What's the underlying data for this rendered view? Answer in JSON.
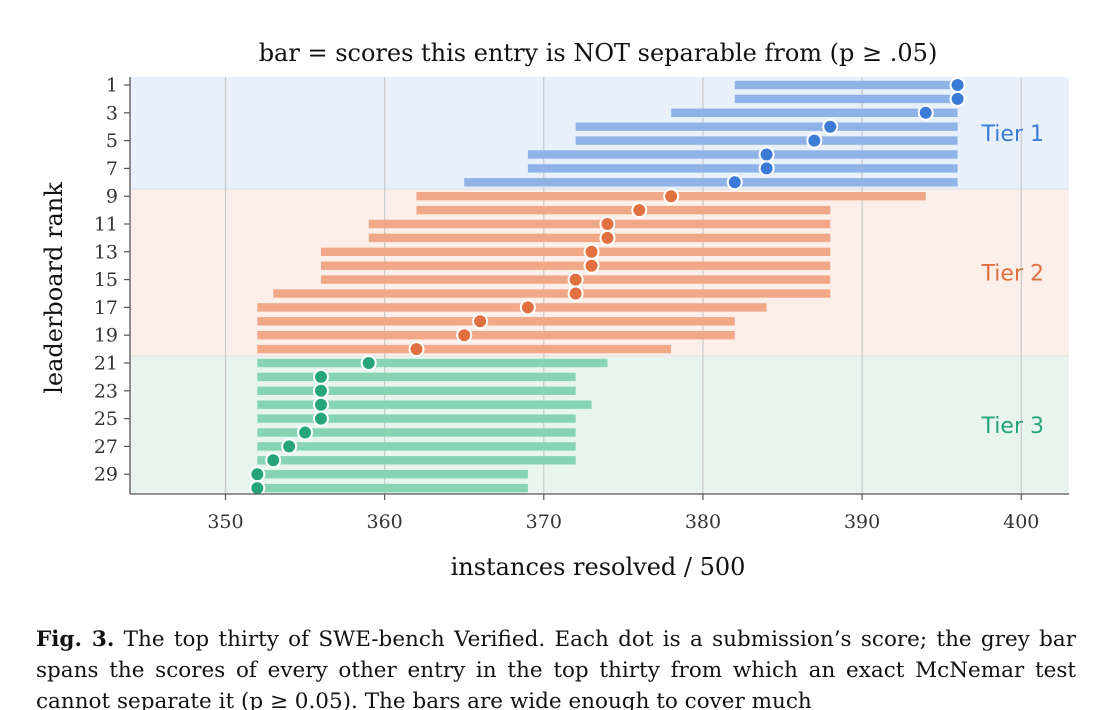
{
  "chart_data": {
    "type": "scatter",
    "title": "bar = scores this entry is NOT separable from (p ≥ .05)",
    "xlabel": "instances resolved / 500",
    "ylabel": "leaderboard rank",
    "xlim": [
      344,
      403
    ],
    "xticks": [
      350,
      360,
      370,
      380,
      390,
      400
    ],
    "yticks": [
      1,
      3,
      5,
      7,
      9,
      11,
      13,
      15,
      17,
      19,
      21,
      23,
      25,
      27,
      29
    ],
    "grid": "vertical",
    "tiers": [
      {
        "name": "Tier 1",
        "ranks": [
          1,
          8
        ],
        "color": "#3a7bd5",
        "band_color": "#e8f0fb",
        "bar_color": "#8fb3e6"
      },
      {
        "name": "Tier 2",
        "ranks": [
          9,
          20
        ],
        "color": "#e0703f",
        "band_color": "#fcefe9",
        "bar_color": "#f0a888"
      },
      {
        "name": "Tier 3",
        "ranks": [
          21,
          30
        ],
        "color": "#27a57a",
        "band_color": "#e8f5ef",
        "bar_color": "#86d4b4"
      }
    ],
    "entries": [
      {
        "rank": 1,
        "score": 396,
        "lo": 382,
        "hi": 396
      },
      {
        "rank": 2,
        "score": 396,
        "lo": 382,
        "hi": 396
      },
      {
        "rank": 3,
        "score": 394,
        "lo": 378,
        "hi": 396
      },
      {
        "rank": 4,
        "score": 388,
        "lo": 372,
        "hi": 396
      },
      {
        "rank": 5,
        "score": 387,
        "lo": 372,
        "hi": 396
      },
      {
        "rank": 6,
        "score": 384,
        "lo": 369,
        "hi": 396
      },
      {
        "rank": 7,
        "score": 384,
        "lo": 369,
        "hi": 396
      },
      {
        "rank": 8,
        "score": 382,
        "lo": 365,
        "hi": 396
      },
      {
        "rank": 9,
        "score": 378,
        "lo": 362,
        "hi": 394
      },
      {
        "rank": 10,
        "score": 376,
        "lo": 362,
        "hi": 388
      },
      {
        "rank": 11,
        "score": 374,
        "lo": 359,
        "hi": 388
      },
      {
        "rank": 12,
        "score": 374,
        "lo": 359,
        "hi": 388
      },
      {
        "rank": 13,
        "score": 373,
        "lo": 356,
        "hi": 388
      },
      {
        "rank": 14,
        "score": 373,
        "lo": 356,
        "hi": 388
      },
      {
        "rank": 15,
        "score": 372,
        "lo": 356,
        "hi": 388
      },
      {
        "rank": 16,
        "score": 372,
        "lo": 353,
        "hi": 388
      },
      {
        "rank": 17,
        "score": 369,
        "lo": 352,
        "hi": 384
      },
      {
        "rank": 18,
        "score": 366,
        "lo": 352,
        "hi": 382
      },
      {
        "rank": 19,
        "score": 365,
        "lo": 352,
        "hi": 382
      },
      {
        "rank": 20,
        "score": 362,
        "lo": 352,
        "hi": 378
      },
      {
        "rank": 21,
        "score": 359,
        "lo": 352,
        "hi": 374
      },
      {
        "rank": 22,
        "score": 356,
        "lo": 352,
        "hi": 372
      },
      {
        "rank": 23,
        "score": 356,
        "lo": 352,
        "hi": 372
      },
      {
        "rank": 24,
        "score": 356,
        "lo": 352,
        "hi": 373
      },
      {
        "rank": 25,
        "score": 356,
        "lo": 352,
        "hi": 372
      },
      {
        "rank": 26,
        "score": 355,
        "lo": 352,
        "hi": 372
      },
      {
        "rank": 27,
        "score": 354,
        "lo": 352,
        "hi": 372
      },
      {
        "rank": 28,
        "score": 353,
        "lo": 352,
        "hi": 372
      },
      {
        "rank": 29,
        "score": 352,
        "lo": 352,
        "hi": 369
      },
      {
        "rank": 30,
        "score": 352,
        "lo": 352,
        "hi": 369
      }
    ]
  },
  "caption": {
    "label": "Fig. 3.",
    "text": " The top thirty of SWE-bench Verified. Each dot is a submission’s score; the grey bar spans the scores of every other entry in the top thirty from which an exact McNemar test cannot separate it (p ≥ 0.05). The bars are wide enough to cover much"
  }
}
